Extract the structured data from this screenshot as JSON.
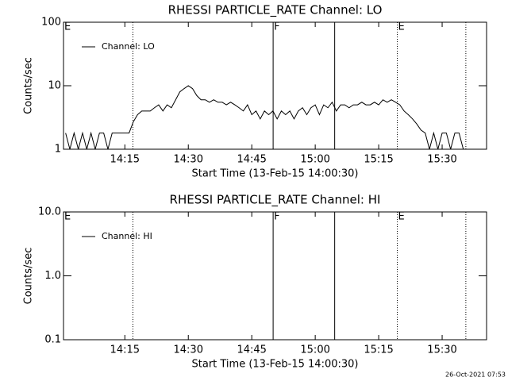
{
  "chart_data": [
    {
      "type": "line",
      "title": "RHESSI PARTICLE_RATE Channel: LO",
      "xlabel": "Start Time (13-Feb-15 14:00:30)",
      "ylabel": "Counts/sec",
      "log_y": true,
      "legend": "top-left",
      "xlim": [
        0.5,
        100.5
      ],
      "ylim": [
        1,
        100
      ],
      "xticks": [
        {
          "value": 15,
          "label": "14:15"
        },
        {
          "value": 30,
          "label": "14:30"
        },
        {
          "value": 45,
          "label": "14:45"
        },
        {
          "value": 60,
          "label": "15:00"
        },
        {
          "value": 75,
          "label": "15:15"
        },
        {
          "value": 90,
          "label": "15:30"
        }
      ],
      "yticks": [
        1,
        10,
        100
      ],
      "events": [
        {
          "x": 0.5,
          "label": "E",
          "style": "dotted"
        },
        {
          "x": 16.9,
          "style": "dotted"
        },
        {
          "x": 50.05,
          "label": "F",
          "style": "solid"
        },
        {
          "x": 64.6,
          "style": "solid"
        },
        {
          "x": 79.4,
          "label": "E",
          "style": "dotted"
        },
        {
          "x": 95.6,
          "style": "dotted"
        }
      ],
      "series": [
        {
          "name": "Channel: LO",
          "color": "#000000",
          "x": [
            1,
            2,
            3,
            4,
            5,
            6,
            7,
            8,
            9,
            10,
            11,
            12,
            13,
            14,
            15,
            16,
            17,
            18,
            19,
            20,
            21,
            22,
            23,
            24,
            25,
            26,
            27,
            28,
            29,
            30,
            31,
            32,
            33,
            34,
            35,
            36,
            37,
            38,
            39,
            40,
            41,
            42,
            43,
            44,
            45,
            46,
            47,
            48,
            49,
            50,
            51,
            52,
            53,
            54,
            55,
            56,
            57,
            58,
            59,
            60,
            61,
            62,
            63,
            64,
            65,
            66,
            67,
            68,
            69,
            70,
            71,
            72,
            73,
            74,
            75,
            76,
            77,
            78,
            79,
            80,
            81,
            82,
            83,
            84,
            85,
            86,
            87,
            88,
            89,
            90,
            91,
            92,
            93,
            94,
            95
          ],
          "values": [
            1.8,
            1,
            1.8,
            1,
            1.8,
            1,
            1.8,
            1,
            1.8,
            1.8,
            1,
            1.8,
            1.8,
            1.8,
            1.8,
            1.8,
            2.7,
            3.5,
            4,
            4,
            4,
            4.5,
            5,
            4,
            5,
            4.5,
            6,
            8,
            9,
            10,
            9,
            7,
            6,
            6,
            5.5,
            6,
            5.5,
            5.5,
            5,
            5.5,
            5,
            4.5,
            4,
            5,
            3.5,
            4,
            3,
            4,
            3.5,
            4,
            3,
            4,
            3.5,
            4,
            3,
            4,
            4.5,
            3.5,
            4.5,
            5,
            3.5,
            5,
            4.5,
            5.5,
            4,
            5,
            5,
            4.5,
            5,
            5,
            5.5,
            5,
            5,
            5.5,
            5,
            6,
            5.5,
            6,
            5.5,
            5,
            4,
            3.5,
            3,
            2.5,
            2,
            1.8,
            1,
            1.8,
            1,
            1.8,
            1.8,
            1,
            1.8,
            1.8,
            1
          ]
        }
      ]
    },
    {
      "type": "line",
      "title": "RHESSI PARTICLE_RATE Channel: HI",
      "xlabel": "Start Time (13-Feb-15 14:00:30)",
      "ylabel": "Counts/sec",
      "log_y": true,
      "legend": "top-left",
      "xlim": [
        0.5,
        100.5
      ],
      "ylim": [
        0.1,
        10
      ],
      "xticks": [
        {
          "value": 15,
          "label": "14:15"
        },
        {
          "value": 30,
          "label": "14:30"
        },
        {
          "value": 45,
          "label": "14:45"
        },
        {
          "value": 60,
          "label": "15:00"
        },
        {
          "value": 75,
          "label": "15:15"
        },
        {
          "value": 90,
          "label": "15:30"
        }
      ],
      "yticks": [
        0.1,
        {
          "value": 1,
          "label": "1.0"
        },
        {
          "value": 10,
          "label": "10.0"
        }
      ],
      "events": [
        {
          "x": 0.5,
          "label": "E",
          "style": "dotted"
        },
        {
          "x": 16.9,
          "style": "dotted"
        },
        {
          "x": 50.05,
          "label": "F",
          "style": "solid"
        },
        {
          "x": 64.6,
          "style": "solid"
        },
        {
          "x": 79.4,
          "label": "E",
          "style": "dotted"
        },
        {
          "x": 95.6,
          "style": "dotted"
        }
      ],
      "series": [
        {
          "name": "Channel: HI",
          "color": "#000000",
          "x": [],
          "values": []
        }
      ]
    }
  ],
  "footer": "26-Oct-2021 07:53"
}
